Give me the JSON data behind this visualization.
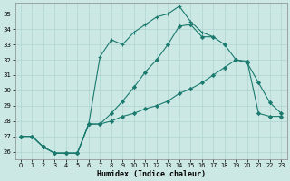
{
  "xlabel": "Humidex (Indice chaleur)",
  "background_color": "#cce8e4",
  "grid_color": "#b0d4d0",
  "line_color": "#1a7a6e",
  "xlim": [
    -0.5,
    23.5
  ],
  "ylim": [
    25.5,
    35.7
  ],
  "yticks": [
    26,
    27,
    28,
    29,
    30,
    31,
    32,
    33,
    34,
    35
  ],
  "xticks": [
    0,
    1,
    2,
    3,
    4,
    5,
    6,
    7,
    8,
    9,
    10,
    11,
    12,
    13,
    14,
    15,
    16,
    17,
    18,
    19,
    20,
    21,
    22,
    23
  ],
  "line1_x": [
    0,
    1,
    2,
    3,
    4,
    5,
    6,
    7,
    8,
    9,
    10,
    11,
    12,
    13,
    14,
    15,
    16,
    17,
    18,
    19,
    20,
    21,
    22,
    23
  ],
  "line1_y": [
    27.0,
    27.0,
    26.3,
    25.9,
    25.9,
    25.9,
    27.8,
    32.2,
    33.3,
    33.0,
    33.8,
    34.3,
    34.8,
    35.0,
    35.5,
    34.5,
    33.8,
    33.5,
    null,
    null,
    null,
    null,
    null,
    null
  ],
  "line2_x": [
    0,
    1,
    2,
    3,
    4,
    5,
    6,
    7,
    8,
    9,
    10,
    11,
    12,
    13,
    14,
    15,
    16,
    17,
    18,
    19,
    20,
    21,
    22,
    23
  ],
  "line2_y": [
    27.0,
    27.0,
    26.3,
    25.9,
    25.9,
    25.9,
    27.8,
    27.8,
    28.5,
    29.3,
    30.2,
    31.2,
    32.0,
    33.0,
    34.2,
    34.3,
    33.5,
    33.5,
    33.0,
    32.0,
    31.8,
    30.5,
    29.2,
    28.5
  ],
  "line3_x": [
    0,
    1,
    2,
    3,
    4,
    5,
    6,
    7,
    8,
    9,
    10,
    11,
    12,
    13,
    14,
    15,
    16,
    17,
    18,
    19,
    20,
    21,
    22,
    23
  ],
  "line3_y": [
    27.0,
    27.0,
    26.3,
    25.9,
    25.9,
    25.9,
    27.8,
    27.8,
    28.0,
    28.3,
    28.5,
    28.8,
    29.0,
    29.3,
    29.8,
    30.1,
    30.5,
    31.0,
    31.5,
    32.0,
    31.9,
    28.5,
    28.3,
    28.3
  ]
}
